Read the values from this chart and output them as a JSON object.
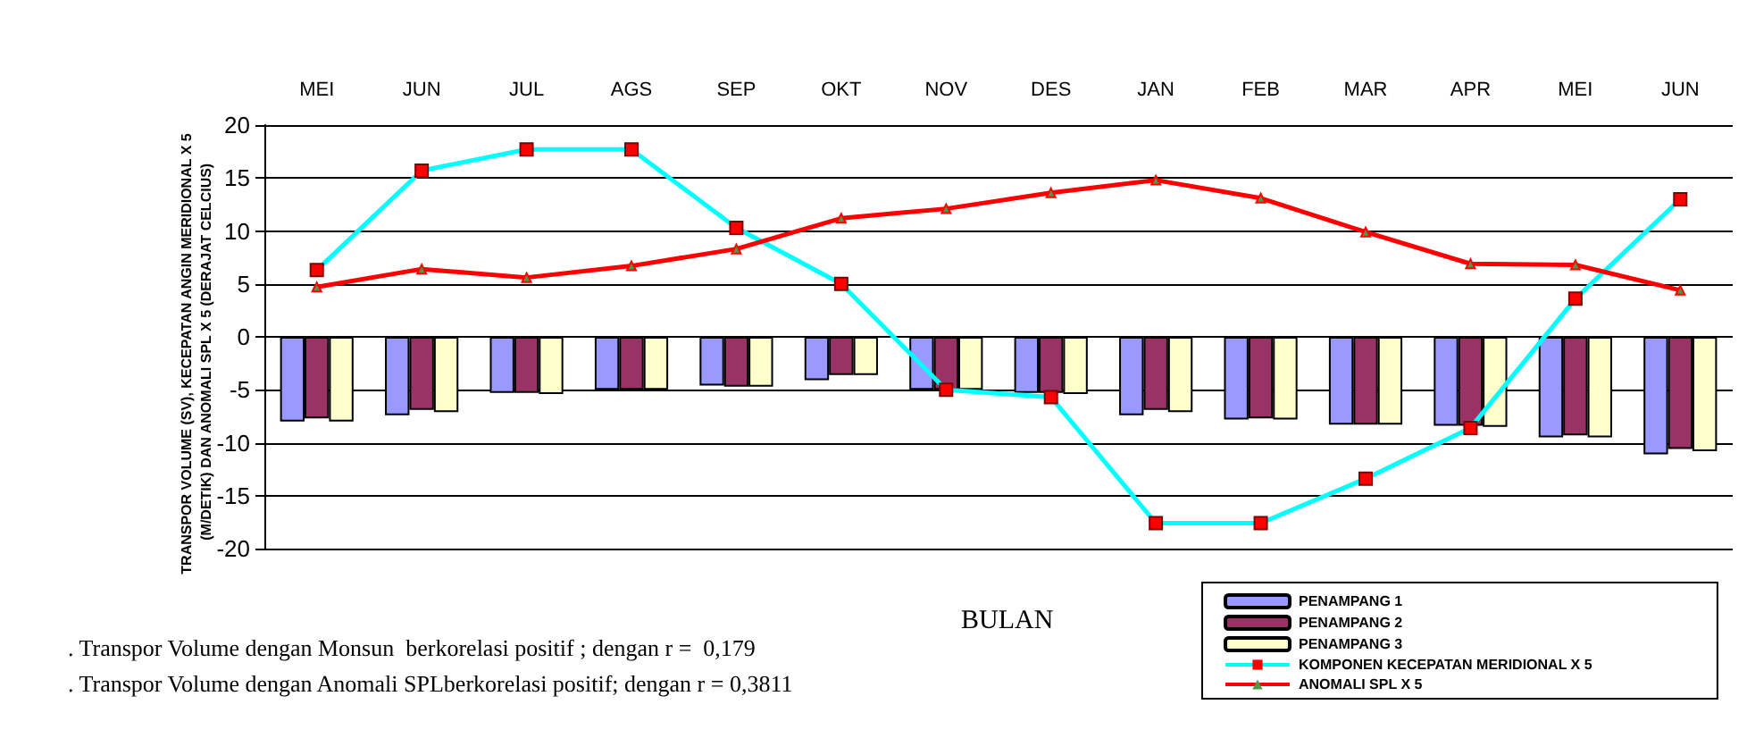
{
  "chart_data": {
    "type": "bar",
    "categories": [
      "MEI",
      "JUN",
      "JUL",
      "AGS",
      "SEP",
      "OKT",
      "NOV",
      "DES",
      "JAN",
      "FEB",
      "MAR",
      "APR",
      "MEI",
      "JUN"
    ],
    "series": [
      {
        "name": "PENAMPANG 1",
        "color": "#9999ff",
        "values": [
          -8.0,
          -7.4,
          -5.3,
          -5.0,
          -4.6,
          -4.1,
          -5.0,
          -5.3,
          -7.4,
          -7.8,
          -8.3,
          -8.4,
          -9.5,
          -11.1
        ]
      },
      {
        "name": "PENAMPANG 2",
        "color": "#993366",
        "values": [
          -7.7,
          -6.9,
          -5.3,
          -5.0,
          -4.7,
          -3.6,
          -5.0,
          -5.3,
          -6.9,
          -7.7,
          -8.3,
          -8.4,
          -9.3,
          -10.6
        ]
      },
      {
        "name": "PENAMPANG 3",
        "color": "#ffffcc",
        "values": [
          -8.0,
          -7.1,
          -5.4,
          -5.0,
          -4.7,
          -3.6,
          -5.0,
          -5.4,
          -7.1,
          -7.8,
          -8.3,
          -8.5,
          -9.5,
          -10.8
        ]
      },
      {
        "name": "KOMPONEN KECEPATAN MERIDIONAL X 5",
        "type": "line",
        "color": "#00ffff",
        "marker": "square",
        "values": [
          6.3,
          15.7,
          17.7,
          17.7,
          10.3,
          5.0,
          -5.0,
          -5.7,
          -17.6,
          -17.6,
          -13.4,
          -8.6,
          3.6,
          13.0
        ]
      },
      {
        "name": "ANOMALI SPL X 5",
        "type": "line",
        "color": "#ff0000",
        "marker": "triangle",
        "values": [
          4.7,
          6.4,
          5.6,
          6.7,
          8.3,
          11.2,
          12.1,
          13.6,
          14.8,
          13.1,
          9.9,
          6.9,
          6.8,
          4.4
        ]
      }
    ],
    "xlabel": "BULAN",
    "ylabel": "TRANSPOR VOLUME (SV), KECEPATAN ANGIN MERIDIONAL X 5 (M/DETIK) DAN ANOMALI SPL X 5 (DERAJAT CELCIUS)",
    "ylim": [
      -20,
      20
    ],
    "yticks": [
      -20,
      -15,
      -10,
      -5,
      0,
      5,
      10,
      15,
      20
    ],
    "grid": "y",
    "legend": "bottom right",
    "annotations": [
      ". Transpor Volume dengan Monsun  berkorelasi positif ; dengan r =  0,179",
      ". Transpor Volume dengan Anomali SPLberkorelasi positif; dengan r = 0,3811"
    ]
  }
}
